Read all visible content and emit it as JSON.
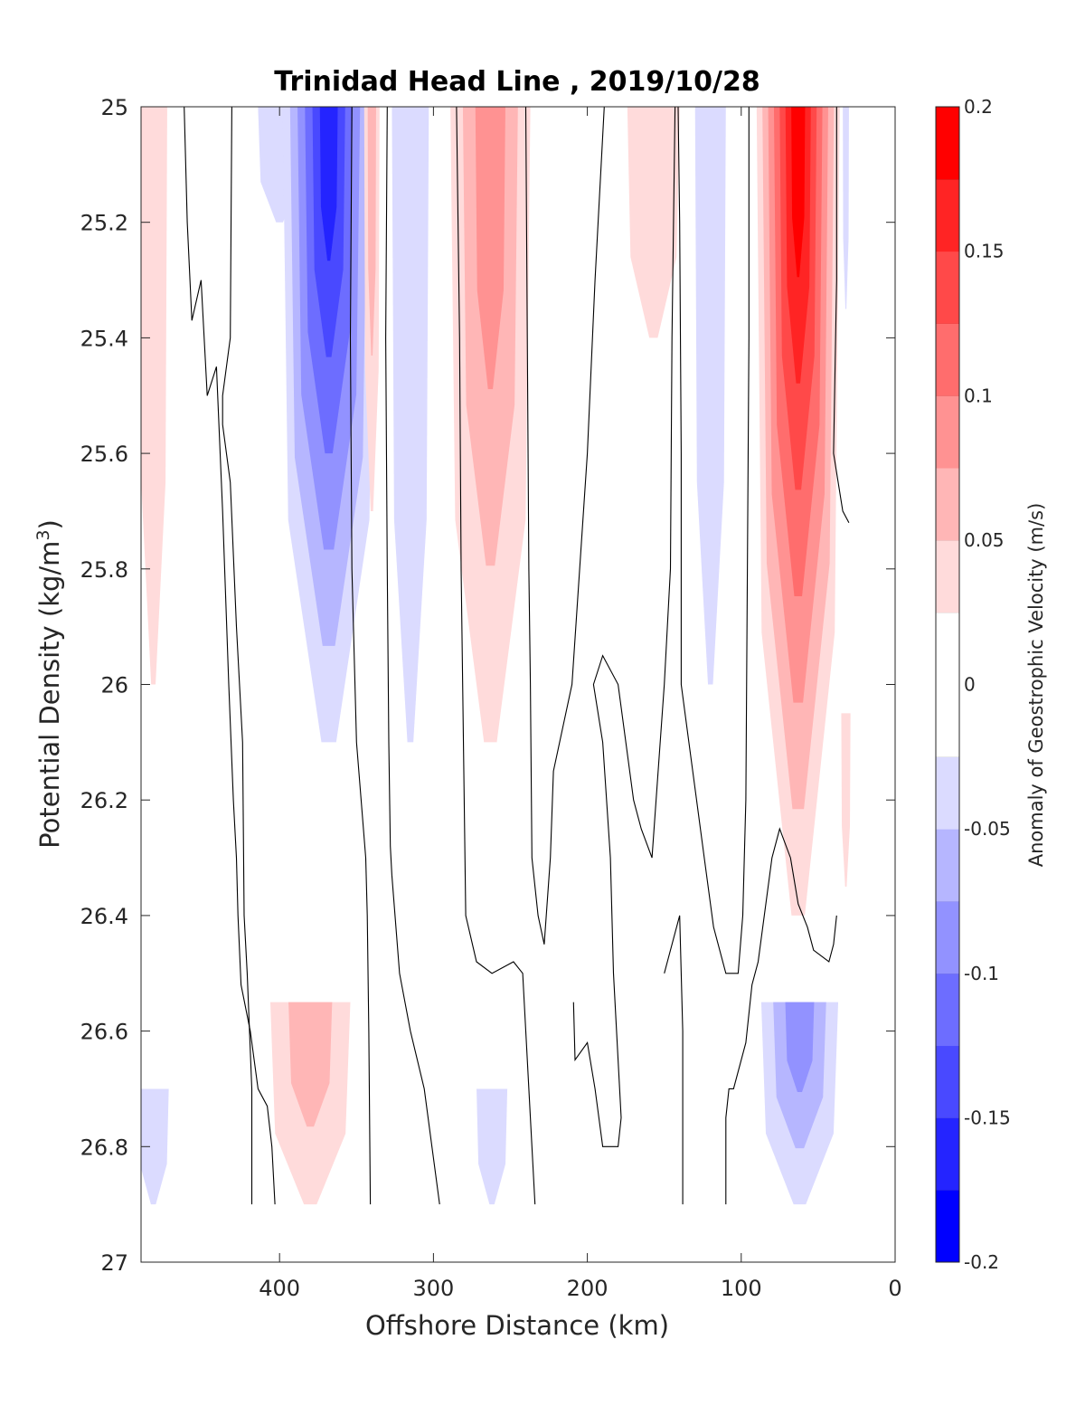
{
  "chart_data": {
    "type": "heatmap",
    "title": "Trinidad Head Line , 2019/10/28",
    "xlabel": "Offshore Distance (km)",
    "ylabel_main": "Potential Density (kg/m",
    "ylabel_sup": "3",
    "ylabel_close": ")",
    "xlim": [
      490,
      0
    ],
    "ylim": [
      25,
      27
    ],
    "y_reversed": true,
    "x_ticks": [
      "400",
      "300",
      "200",
      "100",
      "0"
    ],
    "x_tick_values": [
      400,
      300,
      200,
      100,
      0
    ],
    "y_ticks": [
      "25",
      "25.2",
      "25.4",
      "25.6",
      "25.8",
      "26",
      "26.2",
      "26.4",
      "26.6",
      "26.8",
      "27"
    ],
    "y_tick_values": [
      25,
      25.2,
      25.4,
      25.6,
      25.8,
      26,
      26.2,
      26.4,
      26.6,
      26.8,
      27
    ],
    "colorbar": {
      "label": "Anomaly of Geostrophic Velocity (m/s)",
      "ticks": [
        "-0.2",
        "-0.15",
        "-0.1",
        "-0.05",
        "0",
        "0.05",
        "0.1",
        "0.15",
        "0.2"
      ],
      "tick_values": [
        -0.2,
        -0.15,
        -0.1,
        -0.05,
        0,
        0.05,
        0.1,
        0.15,
        0.2
      ],
      "range": [
        -0.2,
        0.2
      ],
      "levels": 16,
      "colormap": "blue-white-red"
    },
    "features": [
      {
        "name": "offshore-positive-band",
        "x_center": 482,
        "x_halfwidth": 9,
        "y_top": 25.0,
        "y_bottom": 26.0,
        "peak": 0.04
      },
      {
        "name": "deep-negative-patch-west",
        "x_center": 482,
        "x_halfwidth": 10,
        "y_top": 26.7,
        "y_bottom": 26.9,
        "peak": -0.04
      },
      {
        "name": "upper-negative-patch",
        "x_center": 400,
        "x_halfwidth": 14,
        "y_top": 25.0,
        "y_bottom": 25.2,
        "peak": -0.04
      },
      {
        "name": "strong-southward-jet",
        "x_center": 368,
        "x_halfwidth": 30,
        "y_top": 25.0,
        "y_bottom": 26.1,
        "peak": -0.17
      },
      {
        "name": "narrow-positive-filament",
        "x_center": 340,
        "x_halfwidth": 5,
        "y_top": 25.0,
        "y_bottom": 25.7,
        "peak": 0.05
      },
      {
        "name": "narrow-negative-filament",
        "x_center": 315,
        "x_halfwidth": 12,
        "y_top": 25.0,
        "y_bottom": 26.1,
        "peak": -0.04
      },
      {
        "name": "positive-jet-260km",
        "x_center": 263,
        "x_halfwidth": 26,
        "y_top": 25.0,
        "y_bottom": 26.1,
        "peak": 0.09
      },
      {
        "name": "deep-negative-patch-260km",
        "x_center": 262,
        "x_halfwidth": 10,
        "y_top": 26.7,
        "y_bottom": 26.9,
        "peak": -0.04
      },
      {
        "name": "positive-patch-160km",
        "x_center": 157,
        "x_halfwidth": 17,
        "y_top": 25.0,
        "y_bottom": 25.4,
        "peak": 0.04
      },
      {
        "name": "negative-band-120km",
        "x_center": 120,
        "x_halfwidth": 10,
        "y_top": 25.0,
        "y_bottom": 26.0,
        "peak": -0.04
      },
      {
        "name": "strong-northward-jet",
        "x_center": 63,
        "x_halfwidth": 27,
        "y_top": 25.0,
        "y_bottom": 26.4,
        "peak": 0.19
      },
      {
        "name": "deep-positive-patch-370km",
        "x_center": 380,
        "x_halfwidth": 26,
        "y_top": 26.55,
        "y_bottom": 26.9,
        "peak": 0.07
      },
      {
        "name": "deep-negative-patch-60km",
        "x_center": 62,
        "x_halfwidth": 25,
        "y_top": 26.55,
        "y_bottom": 26.9,
        "peak": -0.08
      },
      {
        "name": "coastal-negative-sliver",
        "x_center": 32,
        "x_halfwidth": 2,
        "y_top": 25.0,
        "y_bottom": 25.35,
        "peak": -0.03
      },
      {
        "name": "coastal-positive-sliver",
        "x_center": 32,
        "x_halfwidth": 3,
        "y_top": 26.05,
        "y_bottom": 26.35,
        "peak": 0.04
      }
    ],
    "zero_contours": [
      [
        [
          462,
          25.0
        ],
        [
          460,
          25.2
        ],
        [
          457,
          25.37
        ],
        [
          451,
          25.3
        ],
        [
          447,
          25.5
        ],
        [
          441,
          25.45
        ],
        [
          437,
          25.7
        ],
        [
          433,
          26.0
        ],
        [
          430,
          26.2
        ],
        [
          428,
          26.3
        ],
        [
          427,
          26.4
        ],
        [
          425,
          26.52
        ],
        [
          419,
          26.6
        ],
        [
          414,
          26.7
        ],
        [
          408,
          26.73
        ],
        [
          405,
          26.8
        ],
        [
          403,
          26.9
        ]
      ],
      [
        [
          431,
          25.0
        ],
        [
          432,
          25.4
        ],
        [
          437,
          25.5
        ],
        [
          437,
          25.55
        ],
        [
          432,
          25.65
        ],
        [
          428,
          25.9
        ],
        [
          424,
          26.1
        ],
        [
          423,
          26.4
        ],
        [
          421,
          26.5
        ],
        [
          418,
          26.7
        ],
        [
          418,
          26.9
        ]
      ],
      [
        [
          353,
          25.0
        ],
        [
          354,
          25.4
        ],
        [
          353,
          25.8
        ],
        [
          351,
          26.0
        ],
        [
          350,
          26.1
        ],
        [
          347,
          26.2
        ],
        [
          344,
          26.3
        ],
        [
          343,
          26.4
        ],
        [
          342,
          26.6
        ],
        [
          341,
          26.9
        ]
      ],
      [
        [
          330,
          25.0
        ],
        [
          331,
          25.4
        ],
        [
          330,
          25.8
        ],
        [
          329,
          26.1
        ],
        [
          328,
          26.28
        ],
        [
          327,
          26.33
        ],
        [
          322,
          26.5
        ],
        [
          315,
          26.6
        ],
        [
          306,
          26.7
        ],
        [
          296,
          26.9
        ]
      ],
      [
        [
          285,
          25.0
        ],
        [
          283,
          25.4
        ],
        [
          282,
          25.8
        ],
        [
          280,
          26.2
        ],
        [
          279,
          26.4
        ],
        [
          272,
          26.48
        ],
        [
          262,
          26.5
        ],
        [
          248,
          26.48
        ],
        [
          242,
          26.5
        ],
        [
          240,
          26.6
        ],
        [
          236,
          26.8
        ],
        [
          234,
          26.9
        ]
      ],
      [
        [
          240,
          25.0
        ],
        [
          239,
          25.4
        ],
        [
          238,
          25.8
        ],
        [
          237,
          26.0
        ],
        [
          236,
          26.3
        ],
        [
          232,
          26.4
        ],
        [
          228,
          26.45
        ],
        [
          224,
          26.3
        ],
        [
          222,
          26.15
        ],
        [
          210,
          26.0
        ],
        [
          205,
          25.8
        ],
        [
          200,
          25.6
        ],
        [
          195,
          25.3
        ],
        [
          189,
          25.0
        ]
      ],
      [
        [
          209,
          26.55
        ],
        [
          208,
          26.65
        ],
        [
          200,
          26.62
        ],
        [
          195,
          26.7
        ],
        [
          190,
          26.8
        ],
        [
          180,
          26.8
        ],
        [
          178,
          26.75
        ],
        [
          183,
          26.5
        ],
        [
          185,
          26.3
        ],
        [
          190,
          26.1
        ],
        [
          196,
          26.0
        ],
        [
          190,
          25.95
        ],
        [
          180,
          26.0
        ],
        [
          170,
          26.2
        ],
        [
          165,
          26.25
        ],
        [
          158,
          26.3
        ],
        [
          150,
          26.0
        ],
        [
          146,
          25.8
        ],
        [
          145,
          25.4
        ],
        [
          143,
          25.0
        ]
      ],
      [
        [
          95,
          25.0
        ],
        [
          95,
          25.4
        ],
        [
          96,
          25.8
        ],
        [
          97,
          26.2
        ],
        [
          99,
          26.4
        ],
        [
          102,
          26.5
        ],
        [
          110,
          26.5
        ],
        [
          118,
          26.42
        ],
        [
          124,
          26.3
        ],
        [
          129,
          26.2
        ],
        [
          134,
          26.1
        ],
        [
          139,
          26.0
        ],
        [
          139,
          25.6
        ],
        [
          140,
          25.2
        ],
        [
          141,
          25.0
        ]
      ],
      [
        [
          138,
          26.9
        ],
        [
          138,
          26.6
        ],
        [
          140,
          26.4
        ],
        [
          148,
          26.48
        ],
        [
          150,
          26.5
        ]
      ],
      [
        [
          110,
          26.9
        ],
        [
          110,
          26.75
        ],
        [
          108,
          26.7
        ],
        [
          105,
          26.7
        ],
        [
          97,
          26.62
        ],
        [
          93,
          26.52
        ],
        [
          89,
          26.48
        ],
        [
          87,
          26.44
        ],
        [
          85,
          26.4
        ],
        [
          80,
          26.3
        ],
        [
          75,
          26.25
        ],
        [
          68,
          26.3
        ],
        [
          63,
          26.38
        ],
        [
          57,
          26.42
        ],
        [
          53,
          26.46
        ],
        [
          43,
          26.48
        ],
        [
          40,
          26.45
        ],
        [
          38,
          26.4
        ]
      ],
      [
        [
          38,
          25.0
        ],
        [
          38,
          25.3
        ],
        [
          40,
          25.6
        ],
        [
          34,
          25.7
        ],
        [
          30,
          25.72
        ]
      ]
    ]
  }
}
